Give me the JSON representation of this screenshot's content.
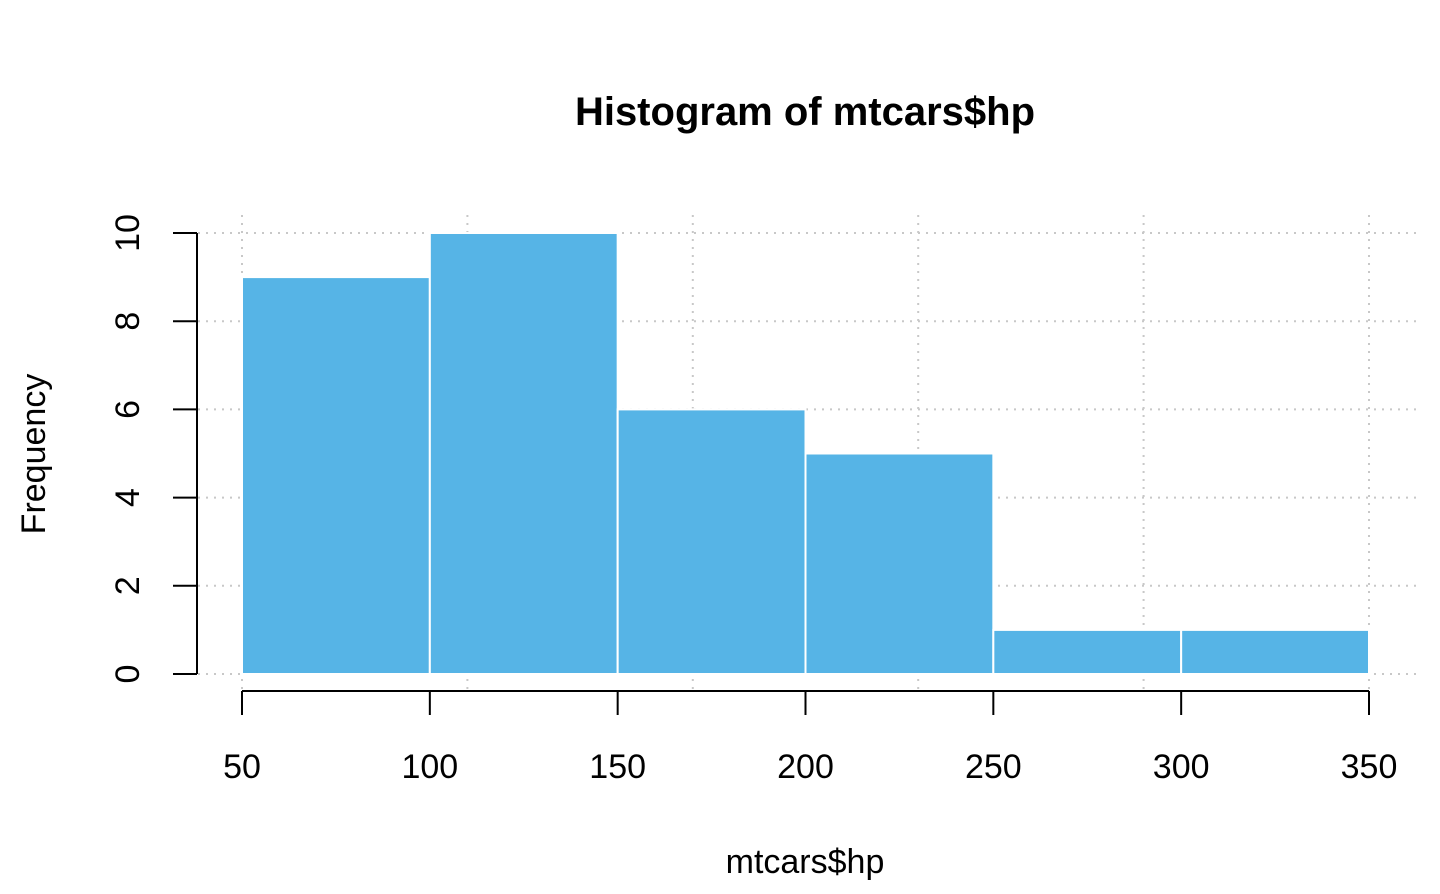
{
  "chart_data": {
    "type": "bar",
    "subtype": "histogram",
    "title": "Histogram of mtcars$hp",
    "xlabel": "mtcars$hp",
    "ylabel": "Frequency",
    "bins": [
      {
        "from": 50,
        "to": 100,
        "count": 9
      },
      {
        "from": 100,
        "to": 150,
        "count": 10
      },
      {
        "from": 150,
        "to": 200,
        "count": 6
      },
      {
        "from": 200,
        "to": 250,
        "count": 5
      },
      {
        "from": 250,
        "to": 300,
        "count": 1
      },
      {
        "from": 300,
        "to": 350,
        "count": 1
      }
    ],
    "xlim": [
      50,
      350
    ],
    "ylim": [
      0,
      10
    ],
    "x_ticks": [
      "50",
      "100",
      "150",
      "200",
      "250",
      "300",
      "350"
    ],
    "y_ticks": [
      "0",
      "2",
      "4",
      "6",
      "8",
      "10"
    ],
    "grid": true,
    "bar_color": "#56B4E6",
    "bar_border_color": "#ffffff"
  }
}
